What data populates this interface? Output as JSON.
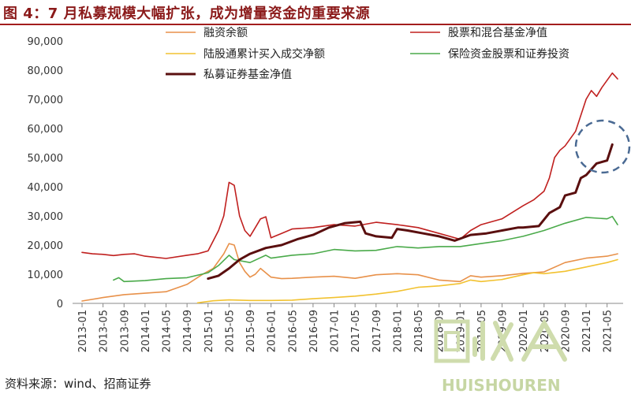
{
  "title": "图 4：7 月私募规模大幅扩张，成为增量资金的重要来源",
  "source": "资料来源：wind、招商证券",
  "watermark": {
    "text": "HUISHOUREN",
    "logo_text": "回收人"
  },
  "chart_data": {
    "type": "line",
    "ylim": [
      0,
      90000
    ],
    "yticks": [
      0,
      10000,
      20000,
      30000,
      40000,
      50000,
      60000,
      70000,
      80000,
      90000
    ],
    "ytick_labels": [
      "0",
      "10,000",
      "20,000",
      "30,000",
      "40,000",
      "50,000",
      "60,000",
      "70,000",
      "80,000",
      "90,000"
    ],
    "xticks": [
      "2013-01",
      "2013-05",
      "2013-09",
      "2014-01",
      "2014-05",
      "2014-09",
      "2015-01",
      "2015-05",
      "2015-09",
      "2016-01",
      "2016-05",
      "2016-09",
      "2017-01",
      "2017-05",
      "2017-09",
      "2018-01",
      "2018-05",
      "2018-09",
      "2019-01",
      "2019-05",
      "2019-09",
      "2020-01",
      "2020-05",
      "2020-09",
      "2021-01",
      "2021-05"
    ],
    "x_start": "2013-01",
    "x_end": "2021-07",
    "grid": false,
    "legend": "top",
    "series": [
      {
        "name": "融资余额",
        "color": "#e8914a",
        "width": 1.6,
        "points": [
          [
            "2013-01",
            800
          ],
          [
            "2013-05",
            2000
          ],
          [
            "2013-09",
            3000
          ],
          [
            "2014-01",
            3500
          ],
          [
            "2014-05",
            4000
          ],
          [
            "2014-09",
            6500
          ],
          [
            "2014-12",
            10000
          ],
          [
            "2015-02",
            12000
          ],
          [
            "2015-04",
            17000
          ],
          [
            "2015-05",
            20500
          ],
          [
            "2015-06",
            20000
          ],
          [
            "2015-07",
            14000
          ],
          [
            "2015-08",
            11000
          ],
          [
            "2015-09",
            9000
          ],
          [
            "2015-10",
            10000
          ],
          [
            "2015-11",
            12000
          ],
          [
            "2016-01",
            9000
          ],
          [
            "2016-03",
            8500
          ],
          [
            "2016-05",
            8600
          ],
          [
            "2016-09",
            9000
          ],
          [
            "2017-01",
            9300
          ],
          [
            "2017-05",
            8600
          ],
          [
            "2017-09",
            9800
          ],
          [
            "2018-01",
            10200
          ],
          [
            "2018-05",
            9800
          ],
          [
            "2018-09",
            8000
          ],
          [
            "2019-01",
            7500
          ],
          [
            "2019-03",
            9500
          ],
          [
            "2019-05",
            9000
          ],
          [
            "2019-09",
            9500
          ],
          [
            "2020-01",
            10300
          ],
          [
            "2020-05",
            10800
          ],
          [
            "2020-09",
            14000
          ],
          [
            "2021-01",
            15500
          ],
          [
            "2021-05",
            16200
          ],
          [
            "2021-07",
            17000
          ]
        ]
      },
      {
        "name": "股票和混合基金净值",
        "color": "#c0201f",
        "width": 1.6,
        "points": [
          [
            "2013-01",
            17500
          ],
          [
            "2013-03",
            17000
          ],
          [
            "2013-05",
            16800
          ],
          [
            "2013-07",
            16400
          ],
          [
            "2013-09",
            16800
          ],
          [
            "2013-11",
            17000
          ],
          [
            "2014-01",
            16200
          ],
          [
            "2014-05",
            15400
          ],
          [
            "2014-09",
            16500
          ],
          [
            "2014-11",
            17000
          ],
          [
            "2015-01",
            18000
          ],
          [
            "2015-03",
            25000
          ],
          [
            "2015-04",
            30000
          ],
          [
            "2015-05",
            41500
          ],
          [
            "2015-06",
            40500
          ],
          [
            "2015-07",
            30000
          ],
          [
            "2015-08",
            25000
          ],
          [
            "2015-09",
            23000
          ],
          [
            "2015-10",
            26000
          ],
          [
            "2015-11",
            29000
          ],
          [
            "2015-12",
            29700
          ],
          [
            "2016-01",
            22500
          ],
          [
            "2016-03",
            24000
          ],
          [
            "2016-05",
            25500
          ],
          [
            "2016-09",
            26000
          ],
          [
            "2017-01",
            27000
          ],
          [
            "2017-05",
            26500
          ],
          [
            "2017-09",
            27800
          ],
          [
            "2018-01",
            27000
          ],
          [
            "2018-05",
            26000
          ],
          [
            "2018-09",
            24000
          ],
          [
            "2019-01",
            22000
          ],
          [
            "2019-03",
            25000
          ],
          [
            "2019-05",
            27000
          ],
          [
            "2019-09",
            29000
          ],
          [
            "2020-01",
            33500
          ],
          [
            "2020-03",
            35500
          ],
          [
            "2020-05",
            38500
          ],
          [
            "2020-06",
            43000
          ],
          [
            "2020-07",
            50000
          ],
          [
            "2020-08",
            52500
          ],
          [
            "2020-09",
            54000
          ],
          [
            "2020-11",
            59000
          ],
          [
            "2021-01",
            70000
          ],
          [
            "2021-02",
            73000
          ],
          [
            "2021-03",
            71000
          ],
          [
            "2021-04",
            74000
          ],
          [
            "2021-06",
            79000
          ],
          [
            "2021-07",
            77000
          ]
        ]
      },
      {
        "name": "陆股通累计买入成交净额",
        "color": "#f2c230",
        "width": 1.6,
        "points": [
          [
            "2014-11",
            200
          ],
          [
            "2015-02",
            900
          ],
          [
            "2015-05",
            1200
          ],
          [
            "2015-09",
            1000
          ],
          [
            "2016-01",
            1000
          ],
          [
            "2016-05",
            1100
          ],
          [
            "2016-09",
            1600
          ],
          [
            "2017-01",
            2000
          ],
          [
            "2017-05",
            2500
          ],
          [
            "2017-09",
            3200
          ],
          [
            "2018-01",
            4100
          ],
          [
            "2018-05",
            5500
          ],
          [
            "2018-09",
            6000
          ],
          [
            "2019-01",
            6800
          ],
          [
            "2019-03",
            8000
          ],
          [
            "2019-05",
            7500
          ],
          [
            "2019-09",
            8200
          ],
          [
            "2020-01",
            9800
          ],
          [
            "2020-03",
            10500
          ],
          [
            "2020-05",
            10200
          ],
          [
            "2020-09",
            11000
          ],
          [
            "2021-01",
            12500
          ],
          [
            "2021-05",
            14000
          ],
          [
            "2021-07",
            15000
          ]
        ]
      },
      {
        "name": "保险资金股票和证券投资",
        "color": "#4aaa4a",
        "width": 1.6,
        "points": [
          [
            "2013-07",
            8000
          ],
          [
            "2013-08",
            8800
          ],
          [
            "2013-09",
            7500
          ],
          [
            "2014-01",
            7800
          ],
          [
            "2014-05",
            8500
          ],
          [
            "2014-09",
            8800
          ],
          [
            "2015-01",
            10500
          ],
          [
            "2015-03",
            13000
          ],
          [
            "2015-05",
            16500
          ],
          [
            "2015-06",
            15000
          ],
          [
            "2015-09",
            14000
          ],
          [
            "2015-12",
            16500
          ],
          [
            "2016-01",
            15500
          ],
          [
            "2016-05",
            16500
          ],
          [
            "2016-09",
            17000
          ],
          [
            "2017-01",
            18500
          ],
          [
            "2017-05",
            18000
          ],
          [
            "2017-09",
            18200
          ],
          [
            "2018-01",
            19500
          ],
          [
            "2018-05",
            19000
          ],
          [
            "2018-09",
            19500
          ],
          [
            "2019-01",
            19500
          ],
          [
            "2019-05",
            20500
          ],
          [
            "2019-09",
            21500
          ],
          [
            "2020-01",
            23000
          ],
          [
            "2020-05",
            25000
          ],
          [
            "2020-09",
            27500
          ],
          [
            "2021-01",
            29500
          ],
          [
            "2021-05",
            29000
          ],
          [
            "2021-06",
            29800
          ],
          [
            "2021-07",
            27000
          ]
        ]
      },
      {
        "name": "私募证券基金净值",
        "color": "#5a0f0f",
        "width": 3,
        "points": [
          [
            "2015-01",
            8500
          ],
          [
            "2015-03",
            9500
          ],
          [
            "2015-05",
            12000
          ],
          [
            "2015-07",
            15000
          ],
          [
            "2015-09",
            17000
          ],
          [
            "2015-12",
            19000
          ],
          [
            "2016-03",
            20000
          ],
          [
            "2016-06",
            22000
          ],
          [
            "2016-09",
            23500
          ],
          [
            "2016-12",
            26000
          ],
          [
            "2017-03",
            27500
          ],
          [
            "2017-06",
            28000
          ],
          [
            "2017-07",
            24000
          ],
          [
            "2017-09",
            23000
          ],
          [
            "2017-12",
            22500
          ],
          [
            "2018-01",
            25500
          ],
          [
            "2018-03",
            25000
          ],
          [
            "2018-06",
            24000
          ],
          [
            "2018-09",
            23000
          ],
          [
            "2018-12",
            21500
          ],
          [
            "2019-03",
            23500
          ],
          [
            "2019-06",
            24000
          ],
          [
            "2019-09",
            25000
          ],
          [
            "2019-12",
            26000
          ],
          [
            "2020-01",
            26000
          ],
          [
            "2020-04",
            26500
          ],
          [
            "2020-06",
            31000
          ],
          [
            "2020-08",
            33000
          ],
          [
            "2020-09",
            37000
          ],
          [
            "2020-11",
            38000
          ],
          [
            "2020-12",
            43000
          ],
          [
            "2021-01",
            44000
          ],
          [
            "2021-03",
            48000
          ],
          [
            "2021-05",
            49000
          ],
          [
            "2021-06",
            54500
          ]
        ]
      }
    ],
    "annotation": "dashed-circle"
  }
}
